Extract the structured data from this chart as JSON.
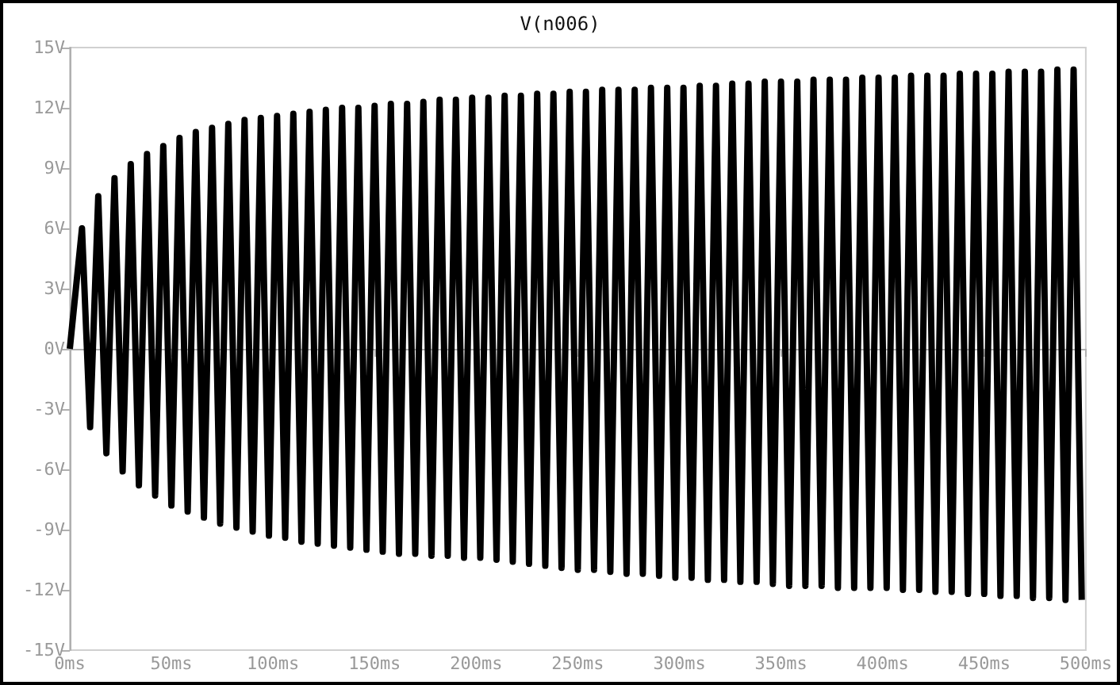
{
  "chart_data": {
    "type": "line",
    "title": "V(n006)",
    "marker": "none",
    "line_style": "solid",
    "xlim": [
      0,
      500
    ],
    "ylim": [
      -15,
      15
    ],
    "xticks": [
      {
        "value": 0,
        "label": "0ms"
      },
      {
        "value": 50,
        "label": "50ms"
      },
      {
        "value": 100,
        "label": "100ms"
      },
      {
        "value": 150,
        "label": "150ms"
      },
      {
        "value": 200,
        "label": "200ms"
      },
      {
        "value": 250,
        "label": "250ms"
      },
      {
        "value": 300,
        "label": "300ms"
      },
      {
        "value": 350,
        "label": "350ms"
      },
      {
        "value": 400,
        "label": "400ms"
      },
      {
        "value": 450,
        "label": "450ms"
      },
      {
        "value": 500,
        "label": "500ms"
      }
    ],
    "yticks": [
      {
        "value": -15,
        "label": "-15V"
      },
      {
        "value": -12,
        "label": "-12V"
      },
      {
        "value": -9,
        "label": "-9V"
      },
      {
        "value": -6,
        "label": "-6V"
      },
      {
        "value": -3,
        "label": "-3V"
      },
      {
        "value": 0,
        "label": "0V"
      },
      {
        "value": 3,
        "label": "3V"
      },
      {
        "value": 6,
        "label": "6V"
      },
      {
        "value": 9,
        "label": "9V"
      },
      {
        "value": 12,
        "label": "12V"
      },
      {
        "value": 15,
        "label": "15V"
      }
    ],
    "series": [
      {
        "color": "#000000",
        "x": [
          0,
          6,
          10,
          14,
          18,
          22,
          26,
          30,
          34,
          38,
          42,
          46,
          50,
          54,
          58,
          62,
          66,
          70,
          74,
          78,
          82,
          86,
          90,
          94,
          98,
          102,
          106,
          110,
          114,
          118,
          122,
          126,
          130,
          134,
          138,
          142,
          146,
          150,
          154,
          158,
          162,
          166,
          170,
          174,
          178,
          182,
          186,
          190,
          194,
          198,
          202,
          206,
          210,
          214,
          218,
          222,
          226,
          230,
          234,
          238,
          242,
          246,
          250,
          254,
          258,
          262,
          266,
          270,
          274,
          278,
          282,
          286,
          290,
          294,
          298,
          302,
          306,
          310,
          314,
          318,
          322,
          326,
          330,
          334,
          338,
          342,
          346,
          350,
          354,
          358,
          362,
          366,
          370,
          374,
          378,
          382,
          386,
          390,
          394,
          398,
          402,
          406,
          410,
          414,
          418,
          422,
          426,
          430,
          434,
          438,
          442,
          446,
          450,
          454,
          458,
          462,
          466,
          470,
          474,
          478,
          482,
          486,
          490,
          494,
          498
        ],
        "values": [
          0,
          6.0,
          -3.9,
          7.6,
          -5.2,
          8.5,
          -6.1,
          9.2,
          -6.8,
          9.7,
          -7.3,
          10.1,
          -7.8,
          10.5,
          -8.1,
          10.8,
          -8.4,
          11.0,
          -8.7,
          11.2,
          -8.9,
          11.4,
          -9.1,
          11.5,
          -9.3,
          11.6,
          -9.4,
          11.7,
          -9.6,
          11.8,
          -9.7,
          11.9,
          -9.8,
          12.0,
          -9.9,
          12.0,
          -10.0,
          12.1,
          -10.1,
          12.2,
          -10.2,
          12.2,
          -10.2,
          12.3,
          -10.3,
          12.4,
          -10.3,
          12.4,
          -10.4,
          12.5,
          -10.4,
          12.5,
          -10.5,
          12.6,
          -10.6,
          12.6,
          -10.7,
          12.7,
          -10.8,
          12.7,
          -10.9,
          12.8,
          -11.0,
          12.8,
          -11.0,
          12.9,
          -11.1,
          12.9,
          -11.2,
          12.9,
          -11.2,
          13.0,
          -11.3,
          13.0,
          -11.4,
          13.0,
          -11.4,
          13.1,
          -11.5,
          13.1,
          -11.5,
          13.2,
          -11.6,
          13.2,
          -11.6,
          13.3,
          -11.7,
          13.3,
          -11.8,
          13.3,
          -11.8,
          13.4,
          -11.8,
          13.4,
          -11.9,
          13.4,
          -11.9,
          13.5,
          -11.9,
          13.5,
          -11.9,
          13.5,
          -12.0,
          13.6,
          -12.0,
          13.6,
          -12.1,
          13.6,
          -12.1,
          13.7,
          -12.2,
          13.7,
          -12.2,
          13.7,
          -12.3,
          13.8,
          -12.3,
          13.8,
          -12.4,
          13.8,
          -12.4,
          13.9,
          -12.5,
          13.9,
          -12.5
        ]
      }
    ]
  }
}
